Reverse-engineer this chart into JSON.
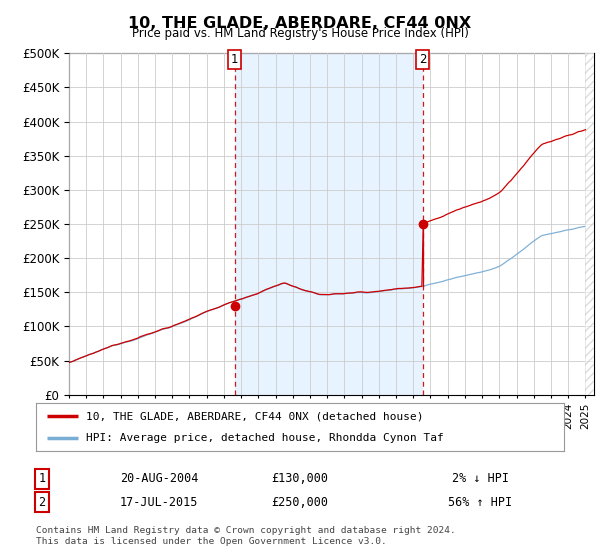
{
  "title": "10, THE GLADE, ABERDARE, CF44 0NX",
  "subtitle": "Price paid vs. HM Land Registry's House Price Index (HPI)",
  "sale1_label": "20-AUG-2004",
  "sale1_price": 130000,
  "sale1_pct": "2% ↓ HPI",
  "sale2_label": "17-JUL-2015",
  "sale2_price": 250000,
  "sale2_pct": "56% ↑ HPI",
  "hpi_line_color": "#7aadd4",
  "price_line_color": "#cc0000",
  "dashed_line_color": "#cc0000",
  "shading_color": "#ddeeff",
  "grid_color": "#cccccc",
  "bg_color": "#ffffff",
  "legend_line1": "10, THE GLADE, ABERDARE, CF44 0NX (detached house)",
  "legend_line2": "HPI: Average price, detached house, Rhondda Cynon Taf",
  "footer": "Contains HM Land Registry data © Crown copyright and database right 2024.\nThis data is licensed under the Open Government Licence v3.0.",
  "ylim": [
    0,
    500000
  ],
  "yticks": [
    0,
    50000,
    100000,
    150000,
    200000,
    250000,
    300000,
    350000,
    400000,
    450000,
    500000
  ],
  "sale1_year": 2004.625,
  "sale2_year": 2015.542,
  "xmin": 1995,
  "xmax": 2025.5
}
